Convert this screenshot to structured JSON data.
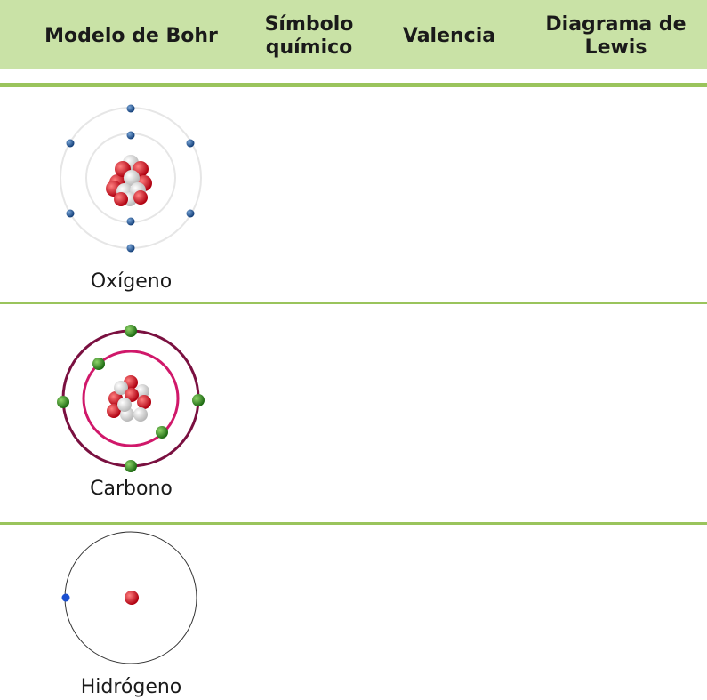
{
  "table": {
    "header": [
      "Modelo de Bohr",
      "Símbolo químico",
      "Valencia",
      "Diagrama de Lewis"
    ],
    "rows": [
      [
        "Oxígeno"
      ],
      [
        "Carbono"
      ],
      [
        "Hidrógeno"
      ]
    ]
  }
}
